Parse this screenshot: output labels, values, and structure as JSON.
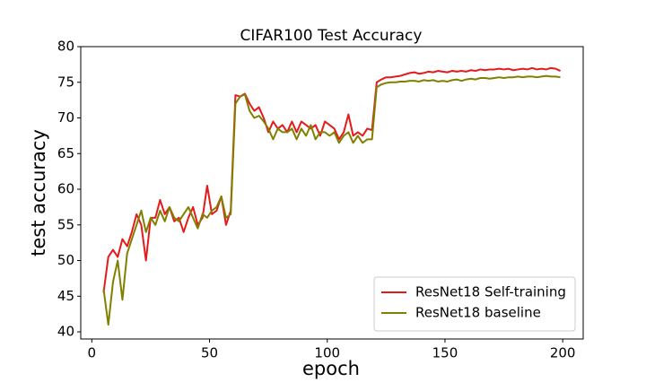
{
  "chart_data": {
    "type": "line",
    "title": "CIFAR100 Test Accuracy",
    "x_label": "epoch",
    "y_label": "test accuracy",
    "x": [
      5,
      7,
      9,
      11,
      13,
      15,
      17,
      19,
      21,
      23,
      25,
      27,
      29,
      31,
      33,
      35,
      37,
      39,
      41,
      43,
      45,
      47,
      49,
      51,
      53,
      55,
      57,
      59,
      61,
      63,
      65,
      67,
      69,
      71,
      73,
      75,
      77,
      79,
      81,
      83,
      85,
      87,
      89,
      91,
      93,
      95,
      97,
      99,
      101,
      103,
      105,
      107,
      109,
      111,
      113,
      115,
      117,
      119,
      121,
      123,
      125,
      127,
      129,
      131,
      133,
      135,
      137,
      139,
      141,
      143,
      145,
      147,
      149,
      151,
      153,
      155,
      157,
      159,
      161,
      163,
      165,
      167,
      169,
      171,
      173,
      175,
      177,
      179,
      181,
      183,
      185,
      187,
      189,
      191,
      193,
      195,
      197,
      199
    ],
    "series": [
      {
        "name": "ResNet18 Self-training",
        "color": "#e41a1c",
        "values": [
          45.5,
          50.5,
          51.5,
          50.5,
          53,
          52,
          54,
          56.5,
          55,
          50,
          56,
          56,
          58.5,
          56.5,
          57.5,
          55.5,
          56,
          54,
          56,
          57.5,
          55,
          56,
          60.5,
          56.5,
          57,
          59,
          55,
          57,
          73.2,
          73,
          73.4,
          72,
          71,
          71.5,
          70,
          68,
          69.5,
          68.5,
          69,
          68,
          69.5,
          68,
          69.5,
          69,
          68.5,
          69,
          67.5,
          69.5,
          69,
          68.5,
          67,
          68,
          70.5,
          67.5,
          68,
          67.5,
          68.5,
          68.3,
          75,
          75.4,
          75.7,
          75.7,
          75.8,
          75.9,
          76.1,
          76.3,
          76.4,
          76.2,
          76.3,
          76.5,
          76.4,
          76.6,
          76.5,
          76.4,
          76.6,
          76.5,
          76.6,
          76.5,
          76.7,
          76.6,
          76.8,
          76.7,
          76.8,
          76.8,
          76.9,
          76.8,
          76.9,
          76.7,
          76.8,
          76.9,
          76.8,
          77,
          76.8,
          76.9,
          76.8,
          77,
          76.9,
          76.6
        ]
      },
      {
        "name": "ResNet18 baseline",
        "color": "#808000",
        "values": [
          46,
          41,
          47,
          50,
          44.5,
          51,
          53,
          55,
          57,
          54,
          56,
          55,
          57,
          55.5,
          57.5,
          56,
          55.5,
          56.5,
          57.5,
          56,
          54.5,
          56.5,
          56,
          57,
          57.5,
          59,
          56,
          56.5,
          72,
          73,
          73.3,
          71,
          70,
          70.3,
          69.5,
          68.5,
          67,
          68.5,
          68,
          68,
          68.5,
          67,
          68.5,
          67.5,
          69,
          67,
          68,
          68,
          67.5,
          68,
          66.5,
          67.5,
          68,
          66.5,
          67.5,
          66.5,
          67,
          67,
          74.3,
          74.7,
          74.9,
          75,
          75,
          75.1,
          75.1,
          75.2,
          75.2,
          75.1,
          75.3,
          75.2,
          75.3,
          75.1,
          75.2,
          75.1,
          75.3,
          75.4,
          75.2,
          75.4,
          75.5,
          75.4,
          75.6,
          75.6,
          75.5,
          75.6,
          75.7,
          75.6,
          75.7,
          75.7,
          75.8,
          75.7,
          75.8,
          75.8,
          75.7,
          75.8,
          75.9,
          75.8,
          75.8,
          75.7
        ]
      }
    ],
    "xlim": [
      -4.7,
      208.7
    ],
    "ylim": [
      39,
      80
    ],
    "xticks": [
      0,
      50,
      100,
      150,
      200
    ],
    "yticks": [
      40,
      45,
      50,
      55,
      60,
      65,
      70,
      75,
      80
    ],
    "legend": "lower right",
    "grid": false
  }
}
